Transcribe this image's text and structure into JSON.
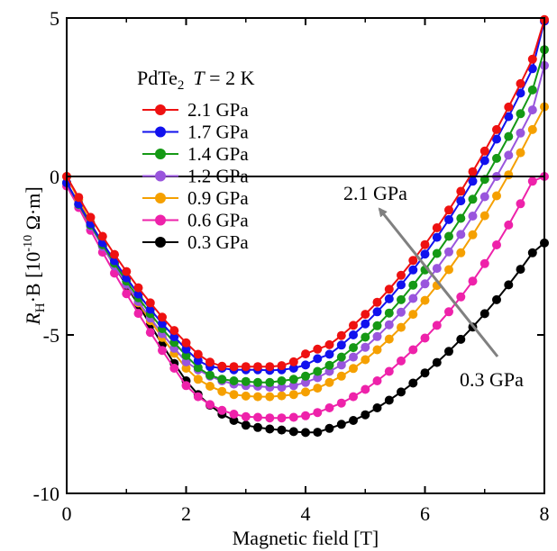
{
  "chart_data": {
    "type": "line",
    "title": "",
    "xlabel": "Magnetic field [T]",
    "ylabel": {
      "main": "R",
      "sub": "H",
      "mid": "·B [10",
      "sup": "-10",
      "tail": " Ω·m]"
    },
    "xlim": [
      0,
      8
    ],
    "ylim": [
      -10,
      5
    ],
    "x_ticks": [
      "0",
      "2",
      "4",
      "6",
      "8"
    ],
    "y_ticks": [
      "-10",
      "-5",
      "0",
      "5"
    ],
    "grid": false,
    "zero_line": true,
    "legend": {
      "placement": "top-left",
      "title_material": "PdTe",
      "title_sub": "2",
      "title_var": "T",
      "title_cond": " = 2 K"
    },
    "annotations": {
      "high": "2.1 GPa",
      "low": "0.3 GPa"
    },
    "x": [
      0.0,
      0.2,
      0.4,
      0.6,
      0.8,
      1.0,
      1.2,
      1.4,
      1.6,
      1.8,
      2.0,
      2.2,
      2.4,
      2.6,
      2.8,
      3.0,
      3.2,
      3.4,
      3.6,
      3.8,
      4.0,
      4.2,
      4.4,
      4.6,
      4.8,
      5.0,
      5.2,
      5.4,
      5.6,
      5.8,
      6.0,
      6.2,
      6.4,
      6.6,
      6.8,
      7.0,
      7.2,
      7.4,
      7.6,
      7.8,
      8.0
    ],
    "series": [
      {
        "name": "2.1 GPa",
        "color": "#ee1111",
        "values": [
          0.0,
          -0.66,
          -1.29,
          -1.89,
          -2.46,
          -3.0,
          -3.51,
          -3.99,
          -4.44,
          -4.86,
          -5.25,
          -5.61,
          -5.86,
          -5.99,
          -6.0,
          -6.0,
          -6.0,
          -6.0,
          -5.97,
          -5.85,
          -5.6,
          -5.45,
          -5.31,
          -5.02,
          -4.7,
          -4.35,
          -3.97,
          -3.56,
          -3.12,
          -2.65,
          -2.15,
          -1.62,
          -1.06,
          -0.47,
          0.15,
          0.8,
          1.48,
          2.19,
          2.93,
          3.7,
          4.95
        ]
      },
      {
        "name": "1.7 GPa",
        "color": "#1111ee",
        "values": [
          -0.2,
          -0.86,
          -1.49,
          -2.09,
          -2.66,
          -3.2,
          -3.71,
          -4.19,
          -4.64,
          -5.06,
          -5.45,
          -5.81,
          -6.0,
          -6.05,
          -6.1,
          -6.1,
          -6.1,
          -6.12,
          -6.1,
          -6.05,
          -5.95,
          -5.75,
          -5.61,
          -5.32,
          -5.0,
          -4.65,
          -4.27,
          -3.86,
          -3.42,
          -2.95,
          -2.45,
          -1.92,
          -1.36,
          -0.77,
          -0.15,
          0.5,
          1.18,
          1.89,
          2.63,
          3.4,
          4.9
        ]
      },
      {
        "name": "1.4 GPa",
        "color": "#159915",
        "values": [
          -0.2,
          -0.88,
          -1.53,
          -2.15,
          -2.74,
          -3.3,
          -3.83,
          -4.33,
          -4.8,
          -5.24,
          -5.65,
          -6.03,
          -6.27,
          -6.4,
          -6.45,
          -6.47,
          -6.5,
          -6.5,
          -6.45,
          -6.4,
          -6.3,
          -6.15,
          -5.96,
          -5.7,
          -5.4,
          -5.07,
          -4.71,
          -4.31,
          -3.89,
          -3.43,
          -2.95,
          -2.43,
          -1.89,
          -1.32,
          -0.72,
          -0.09,
          0.57,
          1.26,
          1.98,
          2.73,
          4.0
        ]
      },
      {
        "name": "1.2 GPa",
        "color": "#9955dd",
        "values": [
          -0.2,
          -0.9,
          -1.57,
          -2.21,
          -2.82,
          -3.4,
          -3.95,
          -4.47,
          -4.96,
          -5.42,
          -5.85,
          -6.1,
          -6.3,
          -6.45,
          -6.55,
          -6.6,
          -6.62,
          -6.65,
          -6.65,
          -6.6,
          -6.5,
          -6.35,
          -6.15,
          -5.95,
          -5.7,
          -5.39,
          -5.05,
          -4.68,
          -4.28,
          -3.85,
          -3.39,
          -2.9,
          -2.38,
          -1.83,
          -1.25,
          -0.64,
          0.0,
          0.67,
          1.37,
          2.1,
          3.5
        ]
      },
      {
        "name": "0.9 GPa",
        "color": "#f5a000",
        "values": [
          0.0,
          -0.74,
          -1.45,
          -2.13,
          -2.78,
          -3.4,
          -3.99,
          -4.55,
          -5.08,
          -5.58,
          -6.05,
          -6.4,
          -6.62,
          -6.78,
          -6.88,
          -6.93,
          -6.95,
          -6.95,
          -6.92,
          -6.88,
          -6.8,
          -6.68,
          -6.5,
          -6.3,
          -6.06,
          -5.78,
          -5.47,
          -5.13,
          -4.76,
          -4.35,
          -3.91,
          -3.44,
          -2.94,
          -2.41,
          -1.84,
          -1.24,
          -0.61,
          0.05,
          0.75,
          1.48,
          2.2
        ]
      },
      {
        "name": "0.6 GPa",
        "color": "#ee22aa",
        "values": [
          -0.3,
          -0.98,
          -1.7,
          -2.39,
          -3.05,
          -3.7,
          -4.32,
          -4.92,
          -5.49,
          -6.05,
          -6.6,
          -6.95,
          -7.2,
          -7.38,
          -7.5,
          -7.58,
          -7.6,
          -7.62,
          -7.62,
          -7.6,
          -7.55,
          -7.45,
          -7.3,
          -7.15,
          -6.95,
          -6.72,
          -6.45,
          -6.15,
          -5.82,
          -5.47,
          -5.1,
          -4.7,
          -4.27,
          -3.8,
          -3.3,
          -2.75,
          -2.16,
          -1.53,
          -0.86,
          -0.15,
          0.0
        ]
      },
      {
        "name": "0.3 GPa",
        "color": "#000000",
        "values": [
          -0.2,
          -0.88,
          -1.55,
          -2.2,
          -2.82,
          -3.45,
          -4.05,
          -4.68,
          -5.3,
          -5.9,
          -6.45,
          -6.88,
          -7.22,
          -7.5,
          -7.7,
          -7.85,
          -7.92,
          -7.97,
          -8.0,
          -8.05,
          -8.08,
          -8.07,
          -7.95,
          -7.82,
          -7.7,
          -7.52,
          -7.3,
          -7.06,
          -6.8,
          -6.52,
          -6.2,
          -5.87,
          -5.52,
          -5.14,
          -4.75,
          -4.33,
          -3.89,
          -3.42,
          -2.93,
          -2.41,
          -2.1
        ]
      }
    ]
  }
}
